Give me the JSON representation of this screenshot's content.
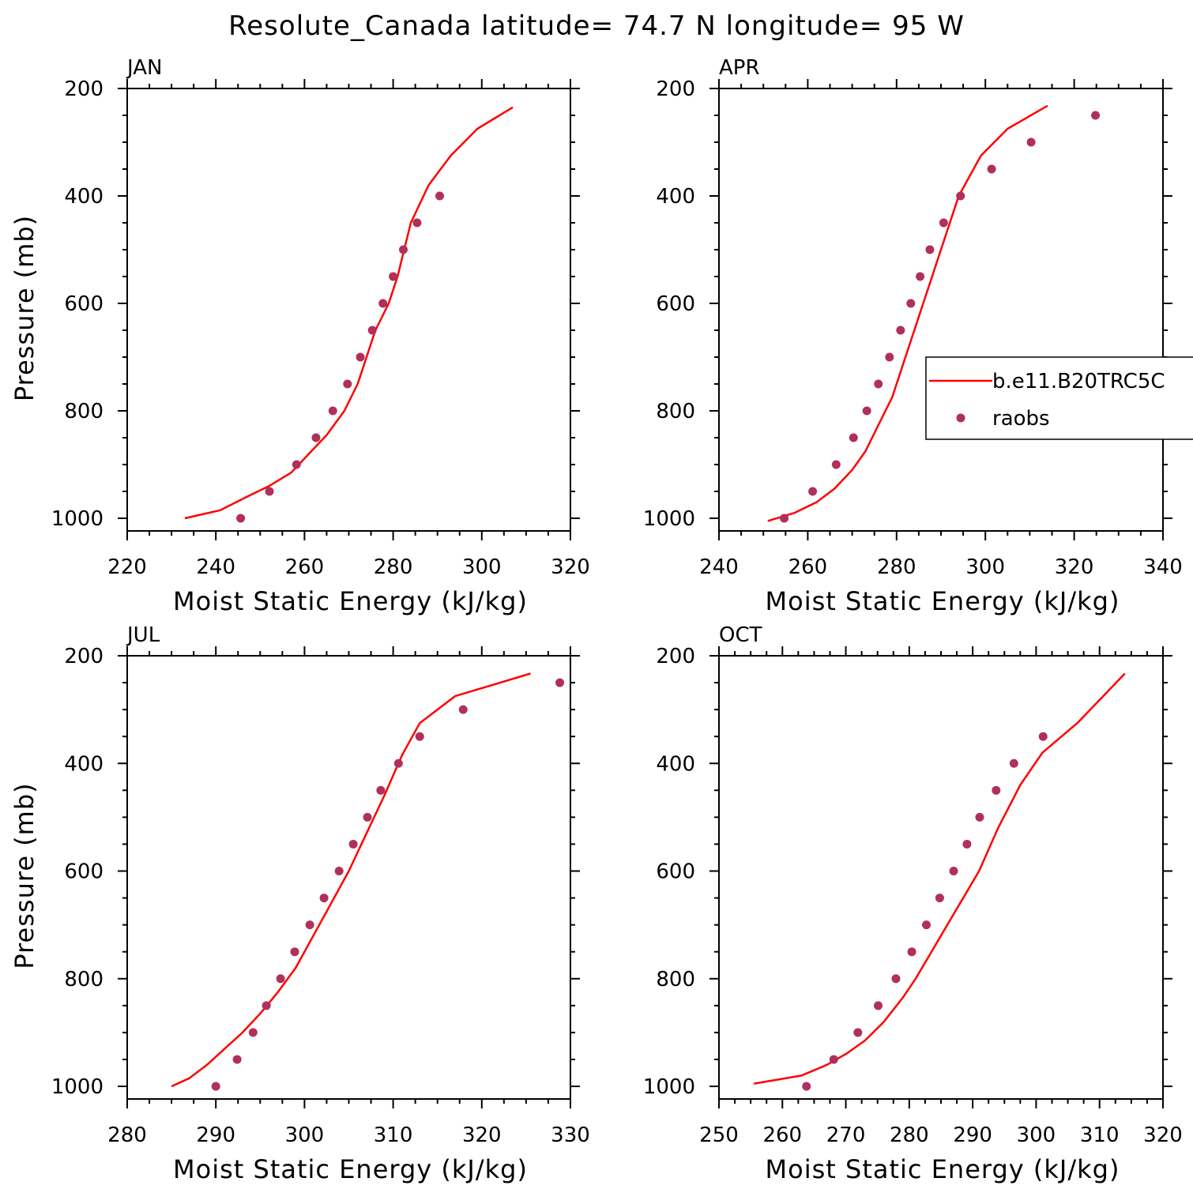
{
  "title": "Resolute_Canada  latitude= 74.7 N longitude= 95 W",
  "colors": {
    "model_line": "#ff0000",
    "obs_points": "#b0305a",
    "axes": "#000000"
  },
  "legend": {
    "placement": "right of APR panel",
    "entries": [
      {
        "label": "b.e11.B20TRC5C",
        "style": "line",
        "color": "#ff0000"
      },
      {
        "label": "raobs",
        "style": "marker",
        "color": "#b0305a"
      }
    ]
  },
  "chart_data": [
    {
      "type": "line+scatter",
      "panel": "JAN",
      "xlabel": "Moist Static Energy (kJ/kg)",
      "ylabel": "Pressure (mb)",
      "xlim": [
        220,
        320
      ],
      "ylim": [
        1000,
        200
      ],
      "y_inverted": true,
      "xticks": [
        220,
        240,
        260,
        280,
        300,
        320
      ],
      "yticks": [
        200,
        400,
        600,
        800,
        1000
      ],
      "series": [
        {
          "name": "b.e11.B20TRC5C",
          "style": "line",
          "x": [
            233,
            241,
            247,
            252,
            257,
            261,
            265,
            269,
            272,
            276,
            279,
            281,
            284,
            288,
            293,
            299,
            307
          ],
          "y": [
            1000,
            985,
            960,
            940,
            915,
            880,
            845,
            800,
            750,
            650,
            600,
            550,
            450,
            380,
            325,
            275,
            235
          ]
        },
        {
          "name": "raobs",
          "style": "marker",
          "x": [
            245.6,
            252.1,
            258.2,
            262.6,
            266.4,
            269.7,
            272.6,
            275.3,
            277.7,
            280.0,
            282.3,
            285.4,
            290.5
          ],
          "y": [
            1000,
            950,
            900,
            850,
            800,
            750,
            700,
            650,
            600,
            550,
            500,
            450,
            400
          ]
        }
      ]
    },
    {
      "type": "line+scatter",
      "panel": "APR",
      "xlabel": "Moist Static Energy (kJ/kg)",
      "ylabel": "",
      "xlim": [
        240,
        340
      ],
      "ylim": [
        1000,
        200
      ],
      "y_inverted": true,
      "xticks": [
        240,
        260,
        280,
        300,
        320,
        340
      ],
      "yticks": [
        200,
        400,
        600,
        800,
        1000
      ],
      "series": [
        {
          "name": "b.e11.B20TRC5C",
          "style": "line",
          "x": [
            251,
            257,
            262,
            266,
            270,
            273,
            276,
            279,
            282,
            284,
            286,
            288,
            291,
            294,
            299,
            305,
            314
          ],
          "y": [
            1005,
            990,
            970,
            945,
            910,
            875,
            825,
            775,
            700,
            650,
            600,
            550,
            475,
            400,
            325,
            275,
            232
          ]
        },
        {
          "name": "raobs",
          "style": "marker",
          "x": [
            254.7,
            261.1,
            266.4,
            270.3,
            273.3,
            275.9,
            278.4,
            280.9,
            283.2,
            285.3,
            287.5,
            290.6,
            294.4,
            301.4,
            310.3,
            324.8
          ],
          "y": [
            1000,
            950,
            900,
            850,
            800,
            750,
            700,
            650,
            600,
            550,
            500,
            450,
            400,
            350,
            300,
            250
          ]
        }
      ]
    },
    {
      "type": "line+scatter",
      "panel": "JUL",
      "xlabel": "Moist Static Energy (kJ/kg)",
      "ylabel": "Pressure (mb)",
      "xlim": [
        280,
        330
      ],
      "ylim": [
        1000,
        200
      ],
      "y_inverted": true,
      "xticks": [
        280,
        290,
        300,
        310,
        320,
        330
      ],
      "yticks": [
        200,
        400,
        600,
        800,
        1000
      ],
      "series": [
        {
          "name": "b.e11.B20TRC5C",
          "style": "line",
          "x": [
            285,
            287,
            289,
            291,
            293,
            295,
            297,
            299,
            301,
            303,
            305,
            307,
            309,
            311,
            313,
            317,
            325.5
          ],
          "y": [
            1000,
            985,
            960,
            930,
            900,
            865,
            825,
            780,
            720,
            660,
            600,
            530,
            460,
            385,
            325,
            275,
            233
          ]
        },
        {
          "name": "raobs",
          "style": "marker",
          "x": [
            290.0,
            292.4,
            294.2,
            295.7,
            297.3,
            298.9,
            300.6,
            302.2,
            303.9,
            305.5,
            307.1,
            308.6,
            310.6,
            313.0,
            317.9,
            328.8
          ],
          "y": [
            1000,
            950,
            900,
            850,
            800,
            750,
            700,
            650,
            600,
            550,
            500,
            450,
            400,
            350,
            300,
            250
          ]
        }
      ]
    },
    {
      "type": "line+scatter",
      "panel": "OCT",
      "xlabel": "Moist Static Energy (kJ/kg)",
      "ylabel": "",
      "xlim": [
        250,
        320
      ],
      "ylim": [
        1000,
        200
      ],
      "y_inverted": true,
      "xticks": [
        250,
        260,
        270,
        280,
        290,
        300,
        310,
        320
      ],
      "yticks": [
        200,
        400,
        600,
        800,
        1000
      ],
      "series": [
        {
          "name": "b.e11.B20TRC5C",
          "style": "line",
          "x": [
            255.5,
            263,
            267,
            270,
            273,
            276,
            279,
            281,
            283.5,
            286,
            288.5,
            291,
            294,
            297.5,
            301,
            306.5,
            314
          ],
          "y": [
            995,
            980,
            960,
            940,
            915,
            880,
            835,
            800,
            750,
            700,
            650,
            600,
            520,
            440,
            380,
            325,
            233
          ]
        },
        {
          "name": "raobs",
          "style": "marker",
          "x": [
            263.8,
            268.1,
            271.9,
            275.1,
            277.9,
            280.4,
            282.7,
            284.8,
            287.0,
            289.1,
            291.1,
            293.7,
            296.5,
            301.1
          ],
          "y": [
            1000,
            950,
            900,
            850,
            800,
            750,
            700,
            650,
            600,
            550,
            500,
            450,
            400,
            350
          ]
        }
      ]
    }
  ]
}
